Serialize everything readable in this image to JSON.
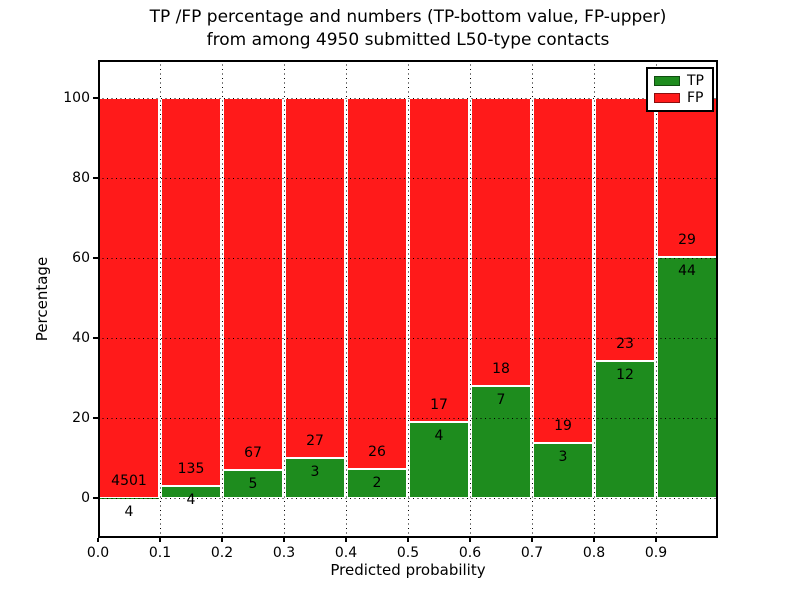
{
  "figure": {
    "title_line1": "TP /FP percentage and numbers (TP-bottom value, FP-upper)",
    "title_line2": "from among 4950 submitted L50-type contacts"
  },
  "chart_data": {
    "type": "bar",
    "subtype": "stacked-percentage",
    "title": "TP /FP percentage and numbers (TP-bottom value, FP-upper)\nfrom among 4950 submitted L50-type contacts",
    "xlabel": "Predicted probability",
    "ylabel": "Percentage",
    "x_tick_labels": [
      "0.0",
      "0.1",
      "0.2",
      "0.3",
      "0.4",
      "0.5",
      "0.6",
      "0.7",
      "0.8",
      "0.9"
    ],
    "y_tick_labels": [
      "0",
      "20",
      "40",
      "60",
      "80",
      "100"
    ],
    "y_tick_values": [
      0,
      20,
      40,
      60,
      80,
      100
    ],
    "xlim": [
      0.0,
      1.0
    ],
    "ylim": [
      -10,
      109.5
    ],
    "grid": true,
    "legend": {
      "position": "upper right",
      "entries": [
        {
          "label": "TP",
          "color": "#1E8C1E"
        },
        {
          "label": "FP",
          "color": "#FF1A1A"
        }
      ]
    },
    "total_submitted": 4950,
    "bins": [
      {
        "range": "0.0-0.1",
        "tp": 4,
        "fp": 4501,
        "tp_percent": 0.09
      },
      {
        "range": "0.1-0.2",
        "tp": 4,
        "fp": 135,
        "tp_percent": 2.88
      },
      {
        "range": "0.2-0.3",
        "tp": 5,
        "fp": 67,
        "tp_percent": 6.94
      },
      {
        "range": "0.3-0.4",
        "tp": 3,
        "fp": 27,
        "tp_percent": 10.0
      },
      {
        "range": "0.4-0.5",
        "tp": 2,
        "fp": 26,
        "tp_percent": 7.14
      },
      {
        "range": "0.5-0.6",
        "tp": 4,
        "fp": 17,
        "tp_percent": 19.05
      },
      {
        "range": "0.6-0.7",
        "tp": 7,
        "fp": 18,
        "tp_percent": 28.0
      },
      {
        "range": "0.7-0.8",
        "tp": 3,
        "fp": 19,
        "tp_percent": 13.64
      },
      {
        "range": "0.8-0.9",
        "tp": 12,
        "fp": 23,
        "tp_percent": 34.29
      },
      {
        "range": "0.9-1.0",
        "tp": 44,
        "fp": 29,
        "tp_percent": 60.27
      }
    ]
  }
}
